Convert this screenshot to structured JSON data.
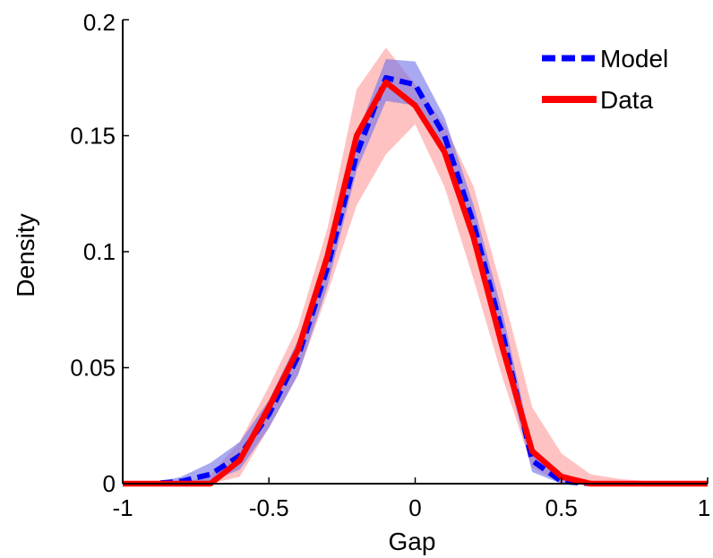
{
  "chart_data": {
    "type": "line",
    "title": "",
    "xlabel": "Gap",
    "ylabel": "Density",
    "xlim": [
      -1,
      1
    ],
    "ylim": [
      0,
      0.2
    ],
    "xticks": [
      "-1",
      "-0.5",
      "0",
      "0.5",
      "1"
    ],
    "yticks": [
      "0",
      "0.05",
      "0.1",
      "0.15",
      "0.2"
    ],
    "grid": false,
    "legend_position": "top-right",
    "x": [
      -1,
      -0.9,
      -0.8,
      -0.7,
      -0.6,
      -0.5,
      -0.4,
      -0.3,
      -0.2,
      -0.1,
      0,
      0.1,
      0.2,
      0.3,
      0.4,
      0.5,
      0.6,
      0.7,
      0.8,
      0.9,
      1
    ],
    "series": [
      {
        "name": "Model",
        "style": "dashed",
        "color": "#0000ff",
        "band_color": "#7070e8",
        "values": [
          0,
          0,
          0.001,
          0.004,
          0.012,
          0.03,
          0.055,
          0.093,
          0.142,
          0.175,
          0.172,
          0.15,
          0.112,
          0.064,
          0.01,
          0.001,
          0,
          0,
          0,
          0,
          0
        ],
        "lower": [
          0,
          0,
          0,
          0.001,
          0.006,
          0.024,
          0.047,
          0.085,
          0.135,
          0.165,
          0.163,
          0.142,
          0.104,
          0.055,
          0.005,
          0,
          0,
          0,
          0,
          0,
          0
        ],
        "upper": [
          0,
          0,
          0.003,
          0.009,
          0.018,
          0.036,
          0.062,
          0.1,
          0.15,
          0.183,
          0.182,
          0.158,
          0.12,
          0.073,
          0.016,
          0.003,
          0,
          0,
          0,
          0,
          0
        ]
      },
      {
        "name": "Data",
        "style": "solid",
        "color": "#ff0000",
        "band_color": "#ff9090",
        "values": [
          0,
          0,
          0,
          0,
          0.01,
          0.033,
          0.058,
          0.098,
          0.15,
          0.173,
          0.163,
          0.143,
          0.106,
          0.058,
          0.014,
          0.003,
          0,
          0,
          0,
          0,
          0
        ],
        "lower": [
          0,
          0,
          0,
          0,
          0.003,
          0.024,
          0.047,
          0.082,
          0.12,
          0.142,
          0.155,
          0.128,
          0.088,
          0.045,
          0.007,
          0,
          0,
          0,
          0,
          0,
          0
        ],
        "upper": [
          0,
          0,
          0,
          0.004,
          0.018,
          0.042,
          0.068,
          0.11,
          0.17,
          0.188,
          0.172,
          0.155,
          0.128,
          0.082,
          0.033,
          0.013,
          0.004,
          0.002,
          0.001,
          0,
          0
        ]
      }
    ]
  }
}
